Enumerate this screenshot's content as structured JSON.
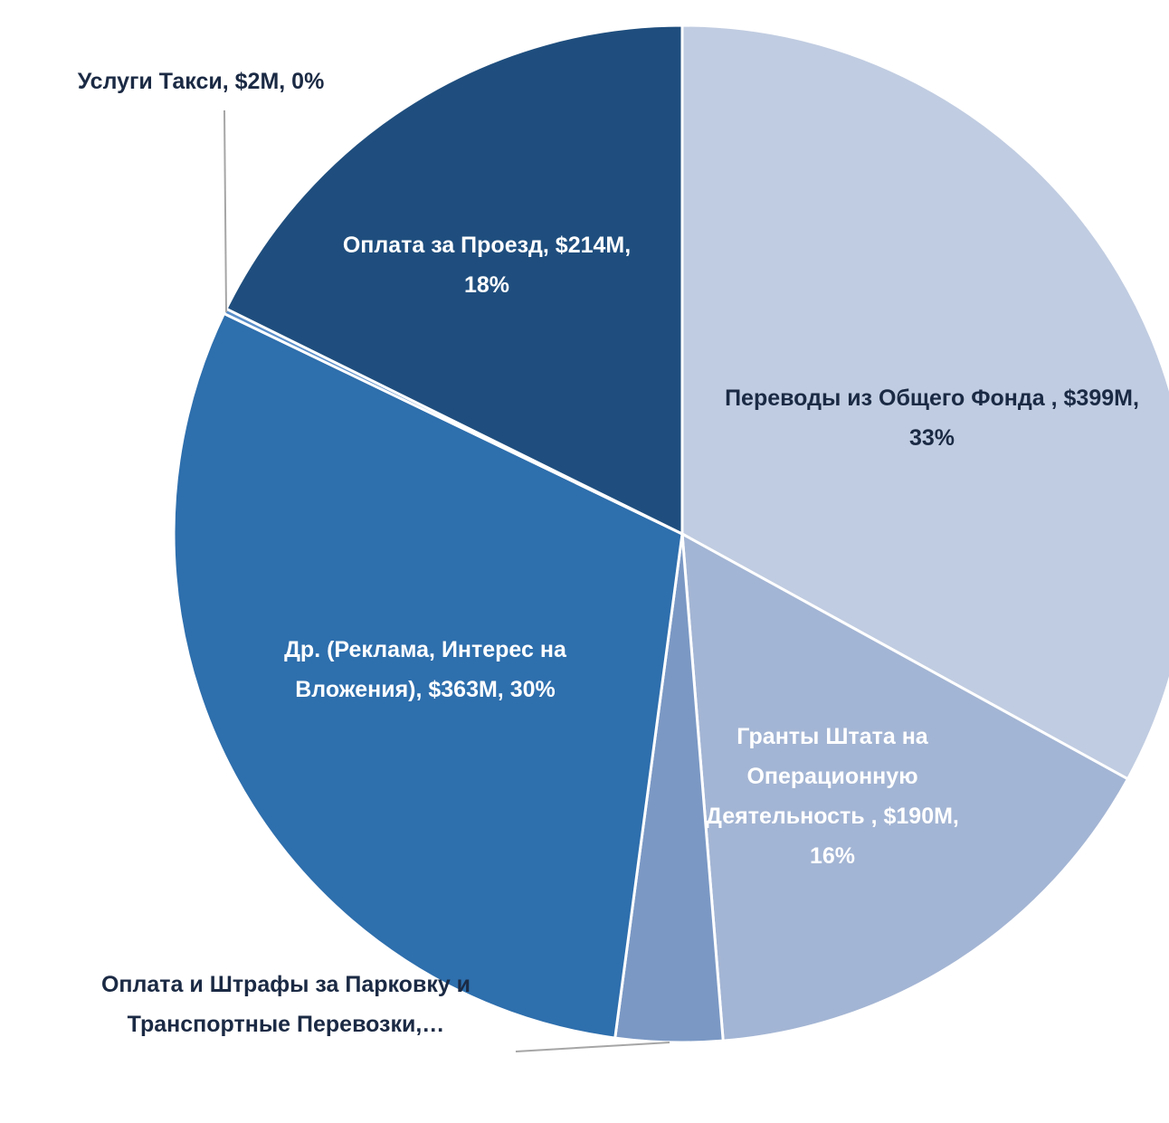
{
  "chart_data": {
    "type": "pie",
    "categories": [
      "Переводы из Общего Фонда",
      "Гранты Штата на Операционную Деятельность",
      "Оплата и Штрафы за Парковку и Транспортные Перевозки",
      "Др. (Реклама, Интерес на Вложения)",
      "Услуги Такси",
      "Оплата за Проезд"
    ],
    "labels": [
      "Переводы из Общего Фонда , $399M, 33%",
      "Гранты Штата на Операционную Деятельность , $190M, 16%",
      "Оплата и Штрафы за Парковку и Транспортные Перевозки,…",
      "Др. (Реклама, Интерес на Вложения),  $363M, 30%",
      "Услуги Такси,  $2M, 0%",
      "Оплата за Проезд, $214M, 18%"
    ],
    "values": [
      399,
      190,
      41,
      363,
      2,
      214
    ],
    "colors": [
      "#c0cce1",
      "#a3b5d4",
      "#7b98c4",
      "#2e6fad",
      "#5b8fc9",
      "#1f4e7e"
    ]
  }
}
